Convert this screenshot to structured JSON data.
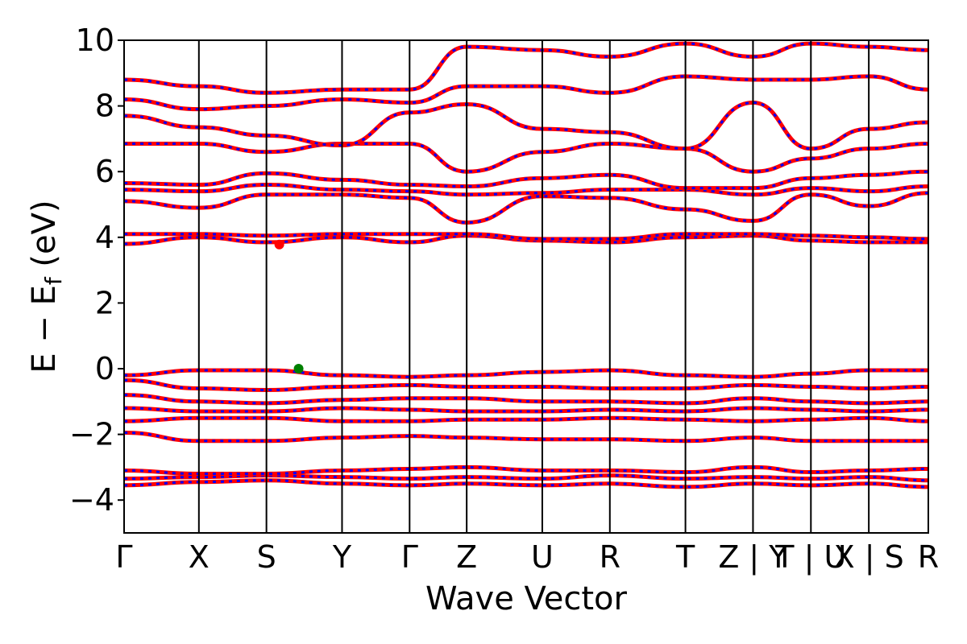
{
  "chart_data": {
    "type": "line",
    "title": "",
    "xlabel": "Wave Vector",
    "ylabel": "E − E",
    "ylabel_subscript": "f",
    "ylabel_unit": " (eV)",
    "ylim": [
      -5,
      10
    ],
    "yticks": [
      -4,
      -2,
      0,
      2,
      4,
      6,
      8,
      10
    ],
    "ytick_labels": [
      "−4",
      "−2",
      "0",
      "2",
      "4",
      "6",
      "8",
      "10"
    ],
    "kpath": [
      {
        "label": "Γ",
        "k": 0.0
      },
      {
        "label": "X",
        "k": 0.093
      },
      {
        "label": "S",
        "k": 0.177
      },
      {
        "label": "Y",
        "k": 0.271
      },
      {
        "label": "Γ",
        "k": 0.355
      },
      {
        "label": "Z",
        "k": 0.426
      },
      {
        "label": "U",
        "k": 0.52
      },
      {
        "label": "R",
        "k": 0.604
      },
      {
        "label": "T",
        "k": 0.698
      },
      {
        "label": "Z | Y",
        "k": 0.782
      },
      {
        "label": "T | U",
        "k": 0.854
      },
      {
        "label": "X | S",
        "k": 0.926
      },
      {
        "label": "R",
        "k": 1.0
      }
    ],
    "series_colors": {
      "spin_up": "#ff0000",
      "spin_down": "#0000ff"
    },
    "vbm": {
      "k": 0.217,
      "E": 0.0,
      "color": "#008000"
    },
    "cbm": {
      "k": 0.193,
      "E": 3.78,
      "color": "#ff0000"
    },
    "bands": [
      [
        -3.55,
        -3.45,
        -3.4,
        -3.5,
        -3.55,
        -3.5,
        -3.55,
        -3.5,
        -3.6,
        -3.5,
        -3.55,
        -3.5,
        -3.6
      ],
      [
        -3.35,
        -3.3,
        -3.25,
        -3.3,
        -3.35,
        -3.3,
        -3.35,
        -3.25,
        -3.35,
        -3.3,
        -3.35,
        -3.3,
        -3.4
      ],
      [
        -3.1,
        -3.2,
        -3.2,
        -3.1,
        -3.05,
        -3.0,
        -3.1,
        -3.1,
        -3.15,
        -3.0,
        -3.15,
        -3.1,
        -3.05
      ],
      [
        -1.95,
        -2.2,
        -2.2,
        -2.1,
        -2.05,
        -2.1,
        -2.15,
        -2.15,
        -2.2,
        -2.1,
        -2.2,
        -2.2,
        -2.2
      ],
      [
        -1.6,
        -1.5,
        -1.5,
        -1.6,
        -1.6,
        -1.55,
        -1.55,
        -1.5,
        -1.55,
        -1.6,
        -1.55,
        -1.5,
        -1.6
      ],
      [
        -1.2,
        -1.3,
        -1.3,
        -1.2,
        -1.25,
        -1.3,
        -1.3,
        -1.25,
        -1.3,
        -1.2,
        -1.25,
        -1.3,
        -1.25
      ],
      [
        -0.8,
        -1.0,
        -1.05,
        -0.95,
        -0.9,
        -0.9,
        -1.0,
        -1.0,
        -1.05,
        -0.9,
        -1.0,
        -1.05,
        -1.0
      ],
      [
        -0.35,
        -0.6,
        -0.65,
        -0.55,
        -0.5,
        -0.55,
        -0.55,
        -0.6,
        -0.6,
        -0.5,
        -0.55,
        -0.6,
        -0.55
      ],
      [
        -0.2,
        -0.05,
        -0.05,
        -0.2,
        -0.25,
        -0.2,
        -0.1,
        -0.05,
        -0.2,
        -0.25,
        -0.15,
        -0.05,
        -0.05
      ],
      [
        3.8,
        4.0,
        3.85,
        4.0,
        3.85,
        4.05,
        3.9,
        3.85,
        4.0,
        4.05,
        3.9,
        3.85,
        3.85
      ],
      [
        4.1,
        4.1,
        4.05,
        4.1,
        4.1,
        4.1,
        3.95,
        3.95,
        4.1,
        4.1,
        4.05,
        4.0,
        3.95
      ],
      [
        5.1,
        4.9,
        5.3,
        5.3,
        5.2,
        4.45,
        5.25,
        5.2,
        4.85,
        4.5,
        5.3,
        4.95,
        5.35
      ],
      [
        5.45,
        5.4,
        5.6,
        5.45,
        5.4,
        5.3,
        5.35,
        5.45,
        5.45,
        5.3,
        5.5,
        5.4,
        5.55
      ],
      [
        5.65,
        5.6,
        5.95,
        5.75,
        5.6,
        5.55,
        5.8,
        5.9,
        5.5,
        5.5,
        5.8,
        5.9,
        6.0
      ],
      [
        6.85,
        6.85,
        6.6,
        6.85,
        6.85,
        6.0,
        6.6,
        6.85,
        6.7,
        6.0,
        6.4,
        6.7,
        6.85
      ],
      [
        7.7,
        7.35,
        7.1,
        6.8,
        7.8,
        8.05,
        7.3,
        7.2,
        6.7,
        8.1,
        6.7,
        7.3,
        7.5
      ],
      [
        8.2,
        7.9,
        8.0,
        8.2,
        8.1,
        8.6,
        8.6,
        8.4,
        8.9,
        8.8,
        8.8,
        8.9,
        8.5
      ],
      [
        8.8,
        8.6,
        8.4,
        8.5,
        8.5,
        9.8,
        9.7,
        9.5,
        9.9,
        9.5,
        9.9,
        9.8,
        9.7
      ]
    ]
  }
}
